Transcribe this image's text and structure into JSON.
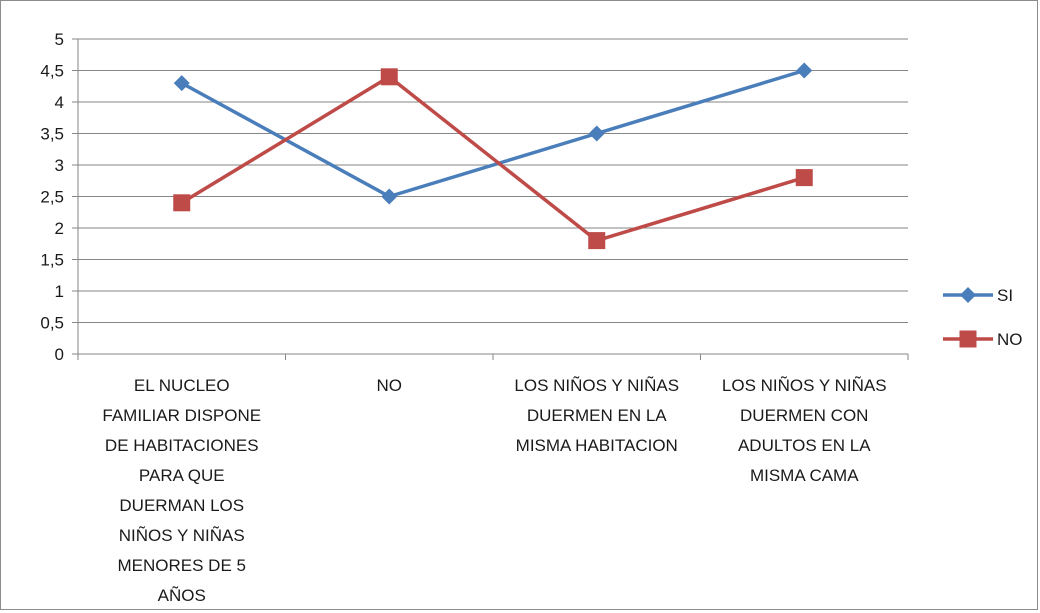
{
  "chart_data": {
    "type": "line",
    "title": "",
    "xlabel": "",
    "ylabel": "",
    "ylim": [
      0,
      5
    ],
    "y_ticks": [
      "0",
      "0,5",
      "1",
      "1,5",
      "2",
      "2,5",
      "3",
      "3,5",
      "4",
      "4,5",
      "5"
    ],
    "grid": true,
    "legend_position": "right",
    "categories": [
      [
        "EL NUCLEO",
        "FAMILIAR DISPONE",
        "DE HABITACIONES",
        "PARA QUE",
        "DUERMAN LOS",
        "NIÑOS Y NIÑAS",
        "MENORES DE 5",
        "AÑOS"
      ],
      [
        "NO"
      ],
      [
        "LOS NIÑOS Y NIÑAS",
        "DUERMEN EN LA",
        "MISMA HABITACION"
      ],
      [
        "LOS NIÑOS Y NIÑAS",
        "DUERMEN CON",
        "ADULTOS EN LA",
        "MISMA CAMA"
      ]
    ],
    "series": [
      {
        "name": "SI",
        "values": [
          4.3,
          2.5,
          3.5,
          4.5
        ],
        "color": "#4a7ebb",
        "marker": "diamond"
      },
      {
        "name": "NO",
        "values": [
          2.4,
          4.4,
          1.8,
          2.8
        ],
        "color": "#be4b48",
        "marker": "square"
      }
    ]
  }
}
